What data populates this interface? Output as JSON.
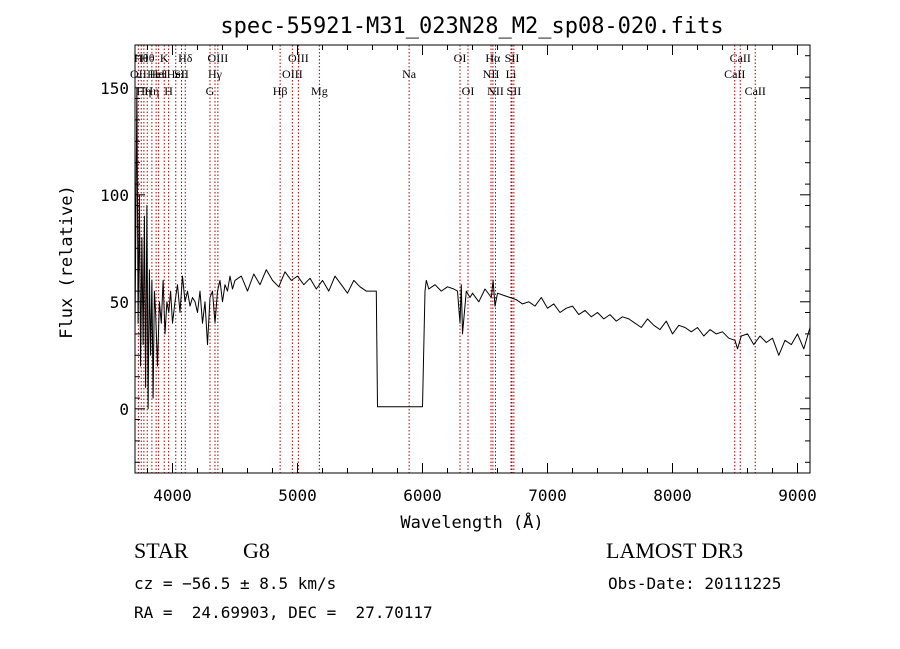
{
  "chart_data": {
    "type": "line",
    "title": "spec-55921-M31_023N28_M2_sp08-020.fits",
    "xlabel": "Wavelength (Å)",
    "ylabel": "Flux (relative)",
    "xlim": [
      3700,
      9100
    ],
    "ylim": [
      -30,
      170
    ],
    "x_ticks": [
      4000,
      5000,
      6000,
      7000,
      8000,
      9000
    ],
    "y_ticks": [
      0,
      50,
      100,
      150
    ],
    "x_tick_labels": [
      "4000",
      "5000",
      "6000",
      "7000",
      "8000",
      "9000"
    ],
    "y_tick_labels": [
      "0",
      "50",
      "100",
      "150"
    ],
    "grid": false,
    "line_color": "#000000",
    "marker_line_color": "#b00000",
    "series": [
      {
        "x": [
          3700,
          3715,
          3725,
          3735,
          3745,
          3755,
          3765,
          3775,
          3785,
          3795,
          3805,
          3815,
          3825,
          3835,
          3845,
          3855,
          3865,
          3880,
          3895,
          3910,
          3925,
          3940,
          3955,
          3970,
          3985,
          4000,
          4020,
          4040,
          4060,
          4080,
          4100,
          4120,
          4140,
          4160,
          4180,
          4200,
          4220,
          4240,
          4260,
          4280,
          4300,
          4320,
          4340,
          4360,
          4380,
          4400,
          4420,
          4440,
          4460,
          4480,
          4500,
          4550,
          4600,
          4650,
          4700,
          4750,
          4800,
          4850,
          4900,
          4950,
          5000,
          5050,
          5100,
          5150,
          5200,
          5250,
          5300,
          5350,
          5400,
          5450,
          5500,
          5550,
          5600,
          5630,
          5640,
          5700,
          5800,
          5900,
          6000,
          6020,
          6030,
          6050,
          6100,
          6150,
          6200,
          6250,
          6280,
          6300,
          6310,
          6320,
          6350,
          6380,
          6400,
          6450,
          6500,
          6550,
          6565,
          6580,
          6600,
          6650,
          6700,
          6750,
          6800,
          6850,
          6900,
          6950,
          7000,
          7050,
          7100,
          7150,
          7200,
          7250,
          7300,
          7350,
          7400,
          7450,
          7500,
          7550,
          7600,
          7650,
          7700,
          7750,
          7800,
          7850,
          7900,
          7950,
          8000,
          8050,
          8100,
          8150,
          8200,
          8250,
          8300,
          8350,
          8400,
          8450,
          8500,
          8520,
          8550,
          8600,
          8650,
          8700,
          8750,
          8800,
          8850,
          8900,
          8950,
          9000,
          9050,
          9100
        ],
        "y": [
          35,
          150,
          40,
          100,
          20,
          80,
          30,
          90,
          10,
          95,
          0,
          65,
          25,
          60,
          5,
          55,
          45,
          20,
          50,
          40,
          60,
          35,
          50,
          45,
          55,
          40,
          50,
          58,
          45,
          62,
          50,
          55,
          48,
          52,
          50,
          45,
          55,
          40,
          50,
          30,
          52,
          55,
          40,
          55,
          60,
          50,
          58,
          55,
          62,
          56,
          60,
          62,
          55,
          63,
          58,
          65,
          60,
          57,
          64,
          60,
          62,
          58,
          61,
          56,
          60,
          55,
          62,
          58,
          54,
          60,
          57,
          55,
          55,
          55,
          1,
          1,
          1,
          1,
          1,
          55,
          60,
          56,
          58,
          55,
          57,
          56,
          55,
          40,
          58,
          35,
          55,
          52,
          54,
          50,
          56,
          52,
          60,
          48,
          54,
          53,
          52,
          51,
          49,
          50,
          48,
          52,
          47,
          49,
          45,
          47,
          48,
          44,
          46,
          43,
          45,
          42,
          44,
          41,
          43,
          42,
          40,
          38,
          42,
          39,
          37,
          41,
          35,
          39,
          38,
          36,
          38,
          34,
          37,
          35,
          36,
          33,
          32,
          28,
          34,
          35,
          30,
          34,
          31,
          33,
          25,
          32,
          30,
          35,
          28,
          38
        ]
      }
    ],
    "lines": [
      {
        "x": 3727,
        "label": "OII",
        "row": 2
      },
      {
        "x": 3750,
        "label": "Hθ",
        "row": 1
      },
      {
        "x": 3771,
        "label": "Hη",
        "row": 3
      },
      {
        "x": 3798,
        "label": "Hθ",
        "row": 1
      },
      {
        "x": 3835,
        "label": "Hη",
        "row": 3
      },
      {
        "x": 3869,
        "label": "HeI",
        "row": 2
      },
      {
        "x": 3889,
        "label": "HeI",
        "row": 2
      },
      {
        "x": 3934,
        "label": "K",
        "row": 1
      },
      {
        "x": 3969,
        "label": "H",
        "row": 3
      },
      {
        "x": 4026,
        "label": "HeI",
        "row": 2
      },
      {
        "x": 4072,
        "label": "SII",
        "row": 2
      },
      {
        "x": 4102,
        "label": "Hδ",
        "row": 1
      },
      {
        "x": 4300,
        "label": "G",
        "row": 3
      },
      {
        "x": 4340,
        "label": "Hγ",
        "row": 2
      },
      {
        "x": 4363,
        "label": "OIII",
        "row": 1
      },
      {
        "x": 4861,
        "label": "Hβ",
        "row": 3
      },
      {
        "x": 4959,
        "label": "OIII",
        "row": 2
      },
      {
        "x": 5007,
        "label": "OIII",
        "row": 1
      },
      {
        "x": 5175,
        "label": "Mg",
        "row": 3
      },
      {
        "x": 5893,
        "label": "Na",
        "row": 2
      },
      {
        "x": 6300,
        "label": "OI",
        "row": 1
      },
      {
        "x": 6364,
        "label": "OI",
        "row": 3
      },
      {
        "x": 6548,
        "label": "NII",
        "row": 2
      },
      {
        "x": 6563,
        "label": "Hα",
        "row": 1
      },
      {
        "x": 6584,
        "label": "NII",
        "row": 3
      },
      {
        "x": 6708,
        "label": "Li",
        "row": 2
      },
      {
        "x": 6716,
        "label": "SII",
        "row": 1
      },
      {
        "x": 6731,
        "label": "SII",
        "row": 3
      },
      {
        "x": 8498,
        "label": "CaII",
        "row": 2
      },
      {
        "x": 8542,
        "label": "CaII",
        "row": 1
      },
      {
        "x": 8662,
        "label": "CaII",
        "row": 3
      }
    ]
  },
  "info": {
    "class": "STAR",
    "subclass": "G8",
    "survey": "LAMOST DR3",
    "cz": "cz = −56.5 ± 8.5 km/s",
    "obs_date": "Obs-Date: 20111225",
    "coords": "RA =  24.69903, DEC =  27.70117"
  }
}
